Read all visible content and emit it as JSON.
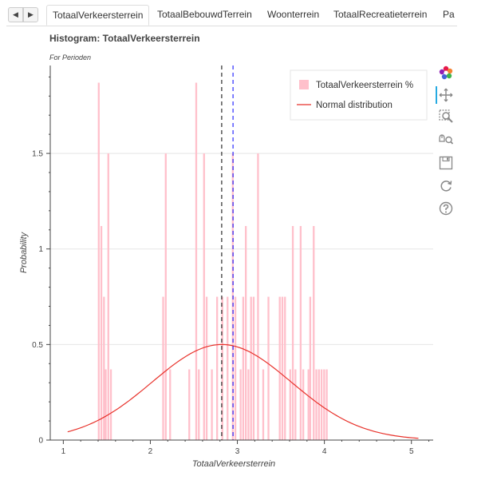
{
  "tabs": [
    {
      "label": "TotaalVerkeersterrein",
      "active": true
    },
    {
      "label": "TotaalBebouwdTerrein",
      "active": false
    },
    {
      "label": "Woonterrein",
      "active": false
    },
    {
      "label": "TotaalRecreatieterrein",
      "active": false
    },
    {
      "label": "Pa",
      "active": false
    }
  ],
  "title": "Histogram: TotaalVerkeersterrein",
  "subtitle": "For Perioden",
  "colors": {
    "bar_fill": "#ffc0cb",
    "normal_line": "#e8322b",
    "mean_line": "#000000",
    "median_line": "#0000ff",
    "axis": "#444444",
    "grid": "#e5e5e5"
  },
  "toolbar": [
    "bokeh-logo-icon",
    "pan-icon",
    "box-zoom-icon",
    "wheel-zoom-icon",
    "save-icon",
    "reset-icon",
    "help-icon"
  ],
  "chart_data": {
    "type": "bar",
    "xlabel": "TotaalVerkeersterrein",
    "ylabel": "Probability",
    "xlim": [
      0.85,
      5.25
    ],
    "ylim": [
      0,
      1.96
    ],
    "x_ticks": [
      1,
      2,
      3,
      4,
      5
    ],
    "y_ticks": [
      0,
      0.5,
      1,
      1.5
    ],
    "y_tick_labels": [
      "0",
      "0.5",
      "1",
      "1.5"
    ],
    "grid": true,
    "legend_position": "top-right",
    "legend": [
      {
        "label": "TotaalVerkeersterrein %",
        "kind": "bar"
      },
      {
        "label": "Normal distribution",
        "kind": "line"
      }
    ],
    "bin_width": 0.0266,
    "bins": [
      {
        "x": 1.41,
        "y": 1.87
      },
      {
        "x": 1.44,
        "y": 1.12
      },
      {
        "x": 1.47,
        "y": 0.75
      },
      {
        "x": 1.49,
        "y": 0.37
      },
      {
        "x": 1.52,
        "y": 1.5
      },
      {
        "x": 1.55,
        "y": 0.37
      },
      {
        "x": 2.15,
        "y": 0.75
      },
      {
        "x": 2.18,
        "y": 1.5
      },
      {
        "x": 2.23,
        "y": 0.37
      },
      {
        "x": 2.45,
        "y": 0.37
      },
      {
        "x": 2.53,
        "y": 1.87
      },
      {
        "x": 2.56,
        "y": 0.37
      },
      {
        "x": 2.62,
        "y": 1.5
      },
      {
        "x": 2.65,
        "y": 0.75
      },
      {
        "x": 2.71,
        "y": 0.37
      },
      {
        "x": 2.77,
        "y": 0.75
      },
      {
        "x": 2.83,
        "y": 0.75
      },
      {
        "x": 2.89,
        "y": 0.75
      },
      {
        "x": 2.95,
        "y": 1.5
      },
      {
        "x": 2.98,
        "y": 0.75
      },
      {
        "x": 3.04,
        "y": 0.37
      },
      {
        "x": 3.07,
        "y": 0.75
      },
      {
        "x": 3.1,
        "y": 1.12
      },
      {
        "x": 3.13,
        "y": 0.37
      },
      {
        "x": 3.16,
        "y": 0.75
      },
      {
        "x": 3.19,
        "y": 0.75
      },
      {
        "x": 3.24,
        "y": 1.5
      },
      {
        "x": 3.3,
        "y": 0.37
      },
      {
        "x": 3.36,
        "y": 0.75
      },
      {
        "x": 3.49,
        "y": 0.75
      },
      {
        "x": 3.52,
        "y": 0.75
      },
      {
        "x": 3.55,
        "y": 0.75
      },
      {
        "x": 3.61,
        "y": 0.37
      },
      {
        "x": 3.64,
        "y": 1.12
      },
      {
        "x": 3.67,
        "y": 0.37
      },
      {
        "x": 3.73,
        "y": 1.12
      },
      {
        "x": 3.76,
        "y": 0.37
      },
      {
        "x": 3.82,
        "y": 0.37
      },
      {
        "x": 3.84,
        "y": 0.75
      },
      {
        "x": 3.88,
        "y": 1.12
      },
      {
        "x": 3.91,
        "y": 0.37
      },
      {
        "x": 3.94,
        "y": 0.37
      },
      {
        "x": 3.97,
        "y": 0.37
      },
      {
        "x": 4.0,
        "y": 0.37
      },
      {
        "x": 4.03,
        "y": 0.37
      }
    ],
    "mean": 2.82,
    "median": 2.95,
    "normal": {
      "mu": 2.82,
      "sigma": 0.8,
      "x_range": [
        1.05,
        5.08
      ]
    }
  }
}
